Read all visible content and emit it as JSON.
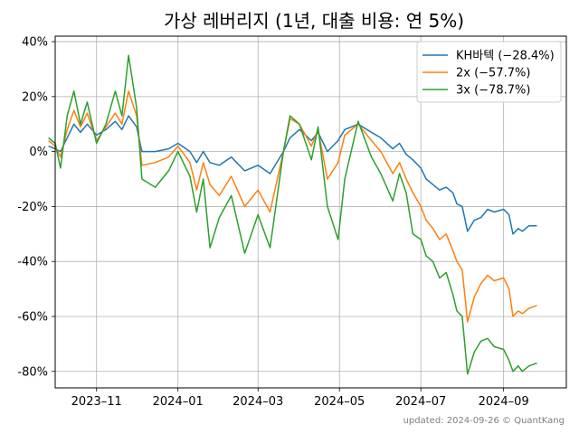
{
  "chart_data": {
    "type": "line",
    "title": "가상 레버리지 (1년, 대출 비용: 연 5%)",
    "xlabel": "",
    "ylabel": "",
    "footer": "updated: 2024-09-26 © QuantKang",
    "xlim": [
      "2023-10-01",
      "2024-10-18"
    ],
    "ylim": [
      -86,
      42
    ],
    "yticks": [
      40,
      20,
      0,
      -20,
      -40,
      -60,
      -80
    ],
    "ytick_labels": [
      "40%",
      "20%",
      "0%",
      "-20%",
      "-40%",
      "-60%",
      "-80%"
    ],
    "xticks": [
      "2023-11-01",
      "2024-01-01",
      "2024-03-01",
      "2024-05-01",
      "2024-07-01",
      "2024-09-01"
    ],
    "xtick_labels": [
      "2023–11",
      "2024–01",
      "2024–03",
      "2024–05",
      "2024–07",
      "2024–09"
    ],
    "grid": true,
    "legend_position": "top-right",
    "series": [
      {
        "name": "KH바텍 (−28.4%)",
        "color": "#1f77b4",
        "points": [
          [
            "2023-09-26",
            2
          ],
          [
            "2023-10-01",
            1
          ],
          [
            "2023-10-05",
            0
          ],
          [
            "2023-10-10",
            5
          ],
          [
            "2023-10-15",
            10
          ],
          [
            "2023-10-20",
            7
          ],
          [
            "2023-10-25",
            10
          ],
          [
            "2023-11-01",
            6
          ],
          [
            "2023-11-08",
            8
          ],
          [
            "2023-11-15",
            11
          ],
          [
            "2023-11-20",
            8
          ],
          [
            "2023-11-25",
            13
          ],
          [
            "2023-12-01",
            9
          ],
          [
            "2023-12-05",
            0
          ],
          [
            "2023-12-15",
            0
          ],
          [
            "2023-12-25",
            1
          ],
          [
            "2024-01-01",
            3
          ],
          [
            "2024-01-10",
            0
          ],
          [
            "2024-01-15",
            -4
          ],
          [
            "2024-01-20",
            0
          ],
          [
            "2024-01-25",
            -4
          ],
          [
            "2024-02-01",
            -5
          ],
          [
            "2024-02-10",
            -2
          ],
          [
            "2024-02-20",
            -7
          ],
          [
            "2024-03-01",
            -5
          ],
          [
            "2024-03-10",
            -8
          ],
          [
            "2024-03-20",
            0
          ],
          [
            "2024-03-25",
            5
          ],
          [
            "2024-04-01",
            8
          ],
          [
            "2024-04-10",
            4
          ],
          [
            "2024-04-15",
            7
          ],
          [
            "2024-04-22",
            0
          ],
          [
            "2024-04-30",
            4
          ],
          [
            "2024-05-05",
            8
          ],
          [
            "2024-05-15",
            10
          ],
          [
            "2024-05-25",
            7
          ],
          [
            "2024-06-01",
            5
          ],
          [
            "2024-06-10",
            1
          ],
          [
            "2024-06-15",
            3
          ],
          [
            "2024-06-20",
            -1
          ],
          [
            "2024-06-25",
            -3
          ],
          [
            "2024-07-01",
            -6
          ],
          [
            "2024-07-05",
            -10
          ],
          [
            "2024-07-10",
            -12
          ],
          [
            "2024-07-15",
            -14
          ],
          [
            "2024-07-20",
            -13
          ],
          [
            "2024-07-25",
            -15
          ],
          [
            "2024-07-28",
            -19
          ],
          [
            "2024-08-01",
            -20
          ],
          [
            "2024-08-05",
            -29
          ],
          [
            "2024-08-10",
            -25
          ],
          [
            "2024-08-15",
            -24
          ],
          [
            "2024-08-20",
            -21
          ],
          [
            "2024-08-25",
            -22
          ],
          [
            "2024-09-01",
            -21
          ],
          [
            "2024-09-05",
            -23
          ],
          [
            "2024-09-08",
            -30
          ],
          [
            "2024-09-12",
            -28
          ],
          [
            "2024-09-15",
            -29
          ],
          [
            "2024-09-20",
            -27
          ],
          [
            "2024-09-26",
            -27
          ]
        ]
      },
      {
        "name": "2x (−57.7%)",
        "color": "#ff7f0e",
        "points": [
          [
            "2023-09-26",
            4
          ],
          [
            "2023-10-01",
            2
          ],
          [
            "2023-10-05",
            -2
          ],
          [
            "2023-10-10",
            8
          ],
          [
            "2023-10-15",
            15
          ],
          [
            "2023-10-20",
            9
          ],
          [
            "2023-10-25",
            14
          ],
          [
            "2023-11-01",
            4
          ],
          [
            "2023-11-08",
            9
          ],
          [
            "2023-11-15",
            14
          ],
          [
            "2023-11-20",
            10
          ],
          [
            "2023-11-25",
            22
          ],
          [
            "2023-12-01",
            13
          ],
          [
            "2023-12-05",
            -5
          ],
          [
            "2023-12-15",
            -4
          ],
          [
            "2023-12-25",
            -2
          ],
          [
            "2024-01-01",
            2
          ],
          [
            "2024-01-10",
            -4
          ],
          [
            "2024-01-15",
            -14
          ],
          [
            "2024-01-20",
            -4
          ],
          [
            "2024-01-25",
            -12
          ],
          [
            "2024-02-01",
            -16
          ],
          [
            "2024-02-10",
            -9
          ],
          [
            "2024-02-20",
            -20
          ],
          [
            "2024-03-01",
            -14
          ],
          [
            "2024-03-10",
            -22
          ],
          [
            "2024-03-20",
            0
          ],
          [
            "2024-03-25",
            12
          ],
          [
            "2024-04-01",
            10
          ],
          [
            "2024-04-10",
            2
          ],
          [
            "2024-04-15",
            8
          ],
          [
            "2024-04-22",
            -10
          ],
          [
            "2024-04-30",
            -4
          ],
          [
            "2024-05-05",
            6
          ],
          [
            "2024-05-15",
            10
          ],
          [
            "2024-05-25",
            4
          ],
          [
            "2024-06-01",
            0
          ],
          [
            "2024-06-10",
            -8
          ],
          [
            "2024-06-15",
            -4
          ],
          [
            "2024-06-20",
            -10
          ],
          [
            "2024-06-25",
            -15
          ],
          [
            "2024-07-01",
            -20
          ],
          [
            "2024-07-05",
            -25
          ],
          [
            "2024-07-10",
            -28
          ],
          [
            "2024-07-15",
            -32
          ],
          [
            "2024-07-20",
            -30
          ],
          [
            "2024-07-25",
            -36
          ],
          [
            "2024-07-28",
            -40
          ],
          [
            "2024-08-01",
            -43
          ],
          [
            "2024-08-05",
            -62
          ],
          [
            "2024-08-10",
            -53
          ],
          [
            "2024-08-15",
            -48
          ],
          [
            "2024-08-20",
            -45
          ],
          [
            "2024-08-25",
            -47
          ],
          [
            "2024-09-01",
            -46
          ],
          [
            "2024-09-05",
            -50
          ],
          [
            "2024-09-08",
            -60
          ],
          [
            "2024-09-12",
            -58
          ],
          [
            "2024-09-15",
            -59
          ],
          [
            "2024-09-20",
            -57
          ],
          [
            "2024-09-26",
            -56
          ]
        ]
      },
      {
        "name": "3x (−78.7%)",
        "color": "#2ca02c",
        "points": [
          [
            "2023-09-26",
            5
          ],
          [
            "2023-10-01",
            3
          ],
          [
            "2023-10-05",
            -6
          ],
          [
            "2023-10-10",
            13
          ],
          [
            "2023-10-15",
            22
          ],
          [
            "2023-10-20",
            10
          ],
          [
            "2023-10-25",
            18
          ],
          [
            "2023-11-01",
            3
          ],
          [
            "2023-11-08",
            10
          ],
          [
            "2023-11-15",
            22
          ],
          [
            "2023-11-20",
            13
          ],
          [
            "2023-11-25",
            35
          ],
          [
            "2023-12-01",
            16
          ],
          [
            "2023-12-05",
            -10
          ],
          [
            "2023-12-15",
            -13
          ],
          [
            "2023-12-25",
            -7
          ],
          [
            "2024-01-01",
            0
          ],
          [
            "2024-01-10",
            -9
          ],
          [
            "2024-01-15",
            -22
          ],
          [
            "2024-01-20",
            -10
          ],
          [
            "2024-01-25",
            -35
          ],
          [
            "2024-02-01",
            -24
          ],
          [
            "2024-02-10",
            -16
          ],
          [
            "2024-02-20",
            -37
          ],
          [
            "2024-03-01",
            -23
          ],
          [
            "2024-03-10",
            -35
          ],
          [
            "2024-03-20",
            0
          ],
          [
            "2024-03-25",
            13
          ],
          [
            "2024-04-01",
            10
          ],
          [
            "2024-04-10",
            -3
          ],
          [
            "2024-04-15",
            9
          ],
          [
            "2024-04-22",
            -20
          ],
          [
            "2024-04-30",
            -32
          ],
          [
            "2024-05-05",
            -10
          ],
          [
            "2024-05-15",
            11
          ],
          [
            "2024-05-25",
            -2
          ],
          [
            "2024-06-01",
            -8
          ],
          [
            "2024-06-10",
            -18
          ],
          [
            "2024-06-15",
            -8
          ],
          [
            "2024-06-20",
            -15
          ],
          [
            "2024-06-25",
            -30
          ],
          [
            "2024-07-01",
            -32
          ],
          [
            "2024-07-05",
            -38
          ],
          [
            "2024-07-10",
            -40
          ],
          [
            "2024-07-15",
            -46
          ],
          [
            "2024-07-20",
            -44
          ],
          [
            "2024-07-25",
            -52
          ],
          [
            "2024-07-28",
            -58
          ],
          [
            "2024-08-01",
            -60
          ],
          [
            "2024-08-05",
            -81
          ],
          [
            "2024-08-10",
            -73
          ],
          [
            "2024-08-15",
            -69
          ],
          [
            "2024-08-20",
            -68
          ],
          [
            "2024-08-25",
            -71
          ],
          [
            "2024-09-01",
            -72
          ],
          [
            "2024-09-05",
            -76
          ],
          [
            "2024-09-08",
            -80
          ],
          [
            "2024-09-12",
            -78
          ],
          [
            "2024-09-15",
            -80
          ],
          [
            "2024-09-20",
            -78
          ],
          [
            "2024-09-26",
            -77
          ]
        ]
      }
    ]
  }
}
